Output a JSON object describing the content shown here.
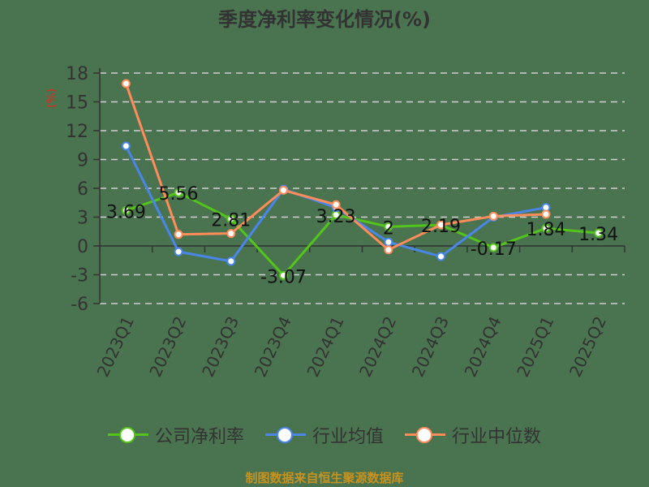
{
  "title": "季度净利率变化情况(%)",
  "y_unit": "(%)",
  "source": "制图数据来自恒生聚源数据库",
  "chart_data": {
    "type": "line",
    "title": "季度净利率变化情况(%)",
    "xlabel": "",
    "ylabel": "(%)",
    "ylim": [
      -6,
      18
    ],
    "yticks": [
      18,
      15,
      12,
      9,
      6,
      3,
      0,
      -3,
      -6
    ],
    "grid": true,
    "legend_position": "bottom",
    "categories": [
      "2023Q1",
      "2023Q2",
      "2023Q3",
      "2023Q4",
      "2024Q1",
      "2024Q2",
      "2024Q3",
      "2024Q4",
      "2025Q1",
      "2025Q2"
    ],
    "series": [
      {
        "name": "公司净利率",
        "color": "#52c41a",
        "values": [
          3.69,
          5.56,
          2.81,
          -3.07,
          3.23,
          2,
          2.19,
          -0.17,
          1.84,
          1.34
        ],
        "labels": [
          "3.69",
          "5.56",
          "2.81",
          "-3.07",
          "3.23",
          "2",
          "2.19",
          "-0.17",
          "1.84",
          "1.34"
        ]
      },
      {
        "name": "行业均值",
        "color": "#4a86e8",
        "values": [
          10.4,
          -0.6,
          -1.6,
          5.9,
          4.0,
          0.4,
          -1.1,
          3.0,
          4.0,
          null
        ]
      },
      {
        "name": "行业中位数",
        "color": "#ff8c5a",
        "values": [
          16.9,
          1.2,
          1.3,
          5.8,
          4.3,
          -0.4,
          2.2,
          3.1,
          3.3,
          null
        ]
      }
    ]
  }
}
